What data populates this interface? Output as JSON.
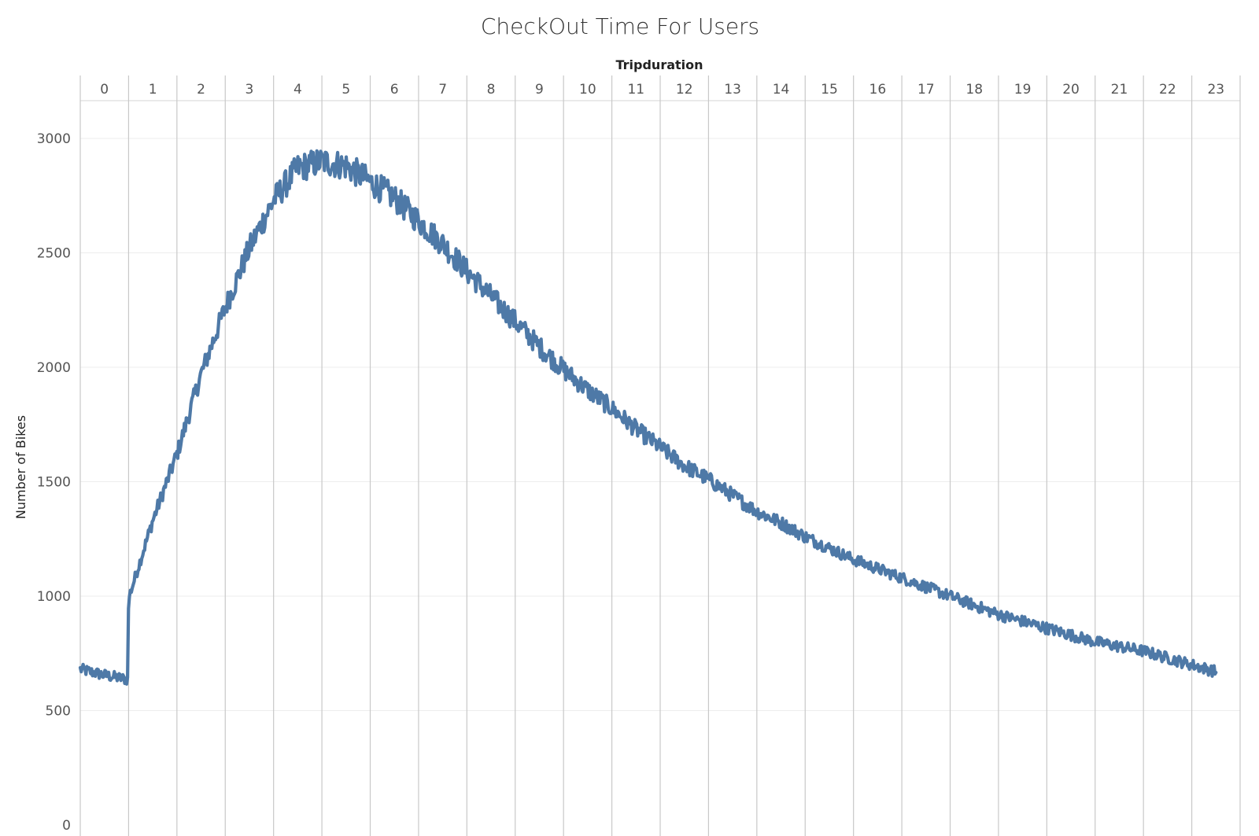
{
  "chart_data": {
    "type": "line",
    "title": "CheckOut Time For Users",
    "xlabel": "Tripduration",
    "ylabel": "Number of Bikes",
    "x_columns": [
      "0",
      "1",
      "2",
      "3",
      "4",
      "5",
      "6",
      "7",
      "8",
      "9",
      "10",
      "11",
      "12",
      "13",
      "14",
      "15",
      "16",
      "17",
      "18",
      "19",
      "20",
      "21",
      "22",
      "23"
    ],
    "y_ticks": [
      0,
      500,
      1000,
      1500,
      2000,
      2500,
      3000
    ],
    "ylim": [
      0,
      3200
    ],
    "grid": true,
    "color": "#4e79a7",
    "series": [
      {
        "x": [
          0,
          0.5,
          0.99,
          1.0,
          1.5,
          2.0,
          2.5,
          3.0,
          3.5,
          4.0,
          4.5,
          5.0,
          5.5,
          6.0,
          6.5,
          7.0,
          7.5,
          8.0,
          8.5,
          9.0,
          9.5,
          10.0,
          10.5,
          11.0,
          11.5,
          12.0,
          12.5,
          13.0,
          13.5,
          14.0,
          14.5,
          15.0,
          15.5,
          16.0,
          16.5,
          17.0,
          17.5,
          18.0,
          18.5,
          19.0,
          19.5,
          20.0,
          20.5,
          21.0,
          21.5,
          22.0,
          22.5,
          23.0,
          23.5
        ],
        "values": [
          680,
          655,
          635,
          990,
          1330,
          1620,
          1970,
          2260,
          2520,
          2730,
          2870,
          2900,
          2880,
          2810,
          2740,
          2640,
          2540,
          2420,
          2310,
          2200,
          2090,
          1990,
          1900,
          1820,
          1730,
          1650,
          1570,
          1510,
          1440,
          1370,
          1320,
          1260,
          1210,
          1160,
          1120,
          1080,
          1040,
          1000,
          960,
          920,
          890,
          860,
          830,
          800,
          780,
          760,
          730,
          700,
          670
        ]
      }
    ]
  }
}
